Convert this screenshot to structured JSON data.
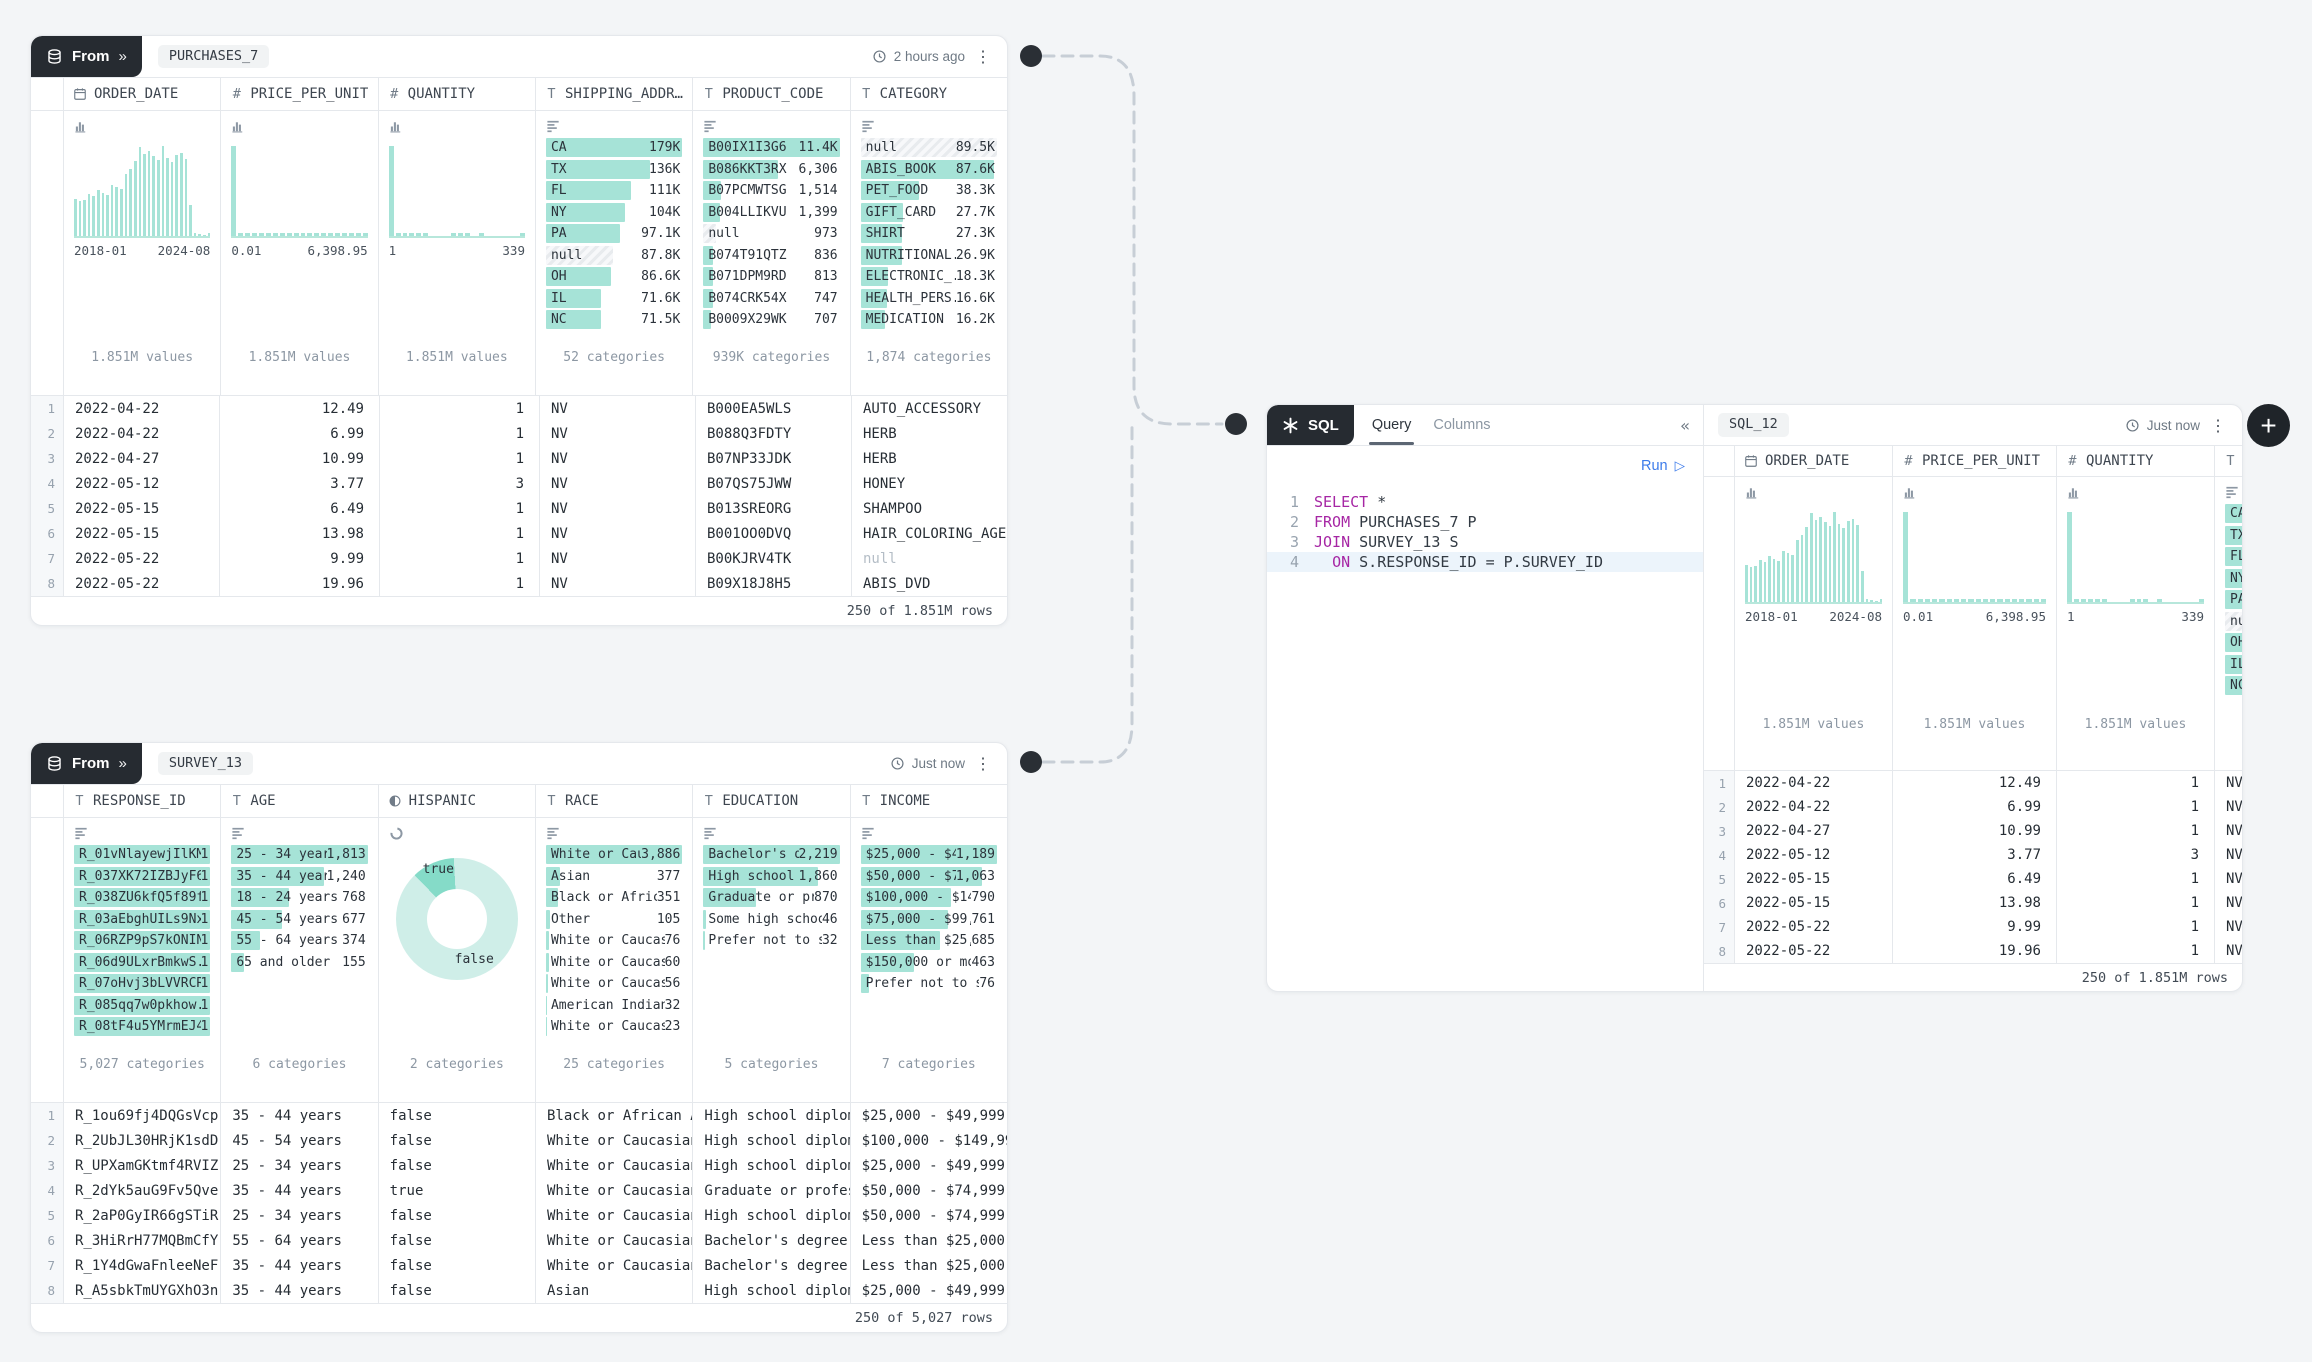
{
  "ui": {
    "from_label": "From",
    "sql_label": "SQL",
    "chevron_right": "»",
    "chevron_left": "«",
    "kebab": "⋮",
    "plus": "+",
    "run_label": "Run",
    "run_icon": "▷",
    "tab_query": "Query",
    "tab_columns": "Columns"
  },
  "purchases": {
    "tab": "PURCHASES_7",
    "timestamp": "2 hours ago",
    "columns": [
      {
        "label": "ORDER_DATE"
      },
      {
        "label": "PRICE_PER_UNIT"
      },
      {
        "label": "QUANTITY"
      },
      {
        "label": "SHIPPING_ADDR…"
      },
      {
        "label": "PRODUCT_CODE"
      },
      {
        "label": "CATEGORY"
      }
    ],
    "order_date": {
      "min": "2018-01",
      "max": "2024-08",
      "count": "1.851M values",
      "bars": [
        41,
        39,
        40,
        47,
        44,
        51,
        48,
        46,
        57,
        54,
        52,
        69,
        74,
        83,
        99,
        91,
        94,
        89,
        84,
        100,
        87,
        82,
        90,
        92,
        86,
        34,
        3,
        2,
        1,
        3
      ]
    },
    "price": {
      "min": "0.01",
      "max": "6,398.95",
      "count": "1.851M values",
      "bars": [
        100,
        3,
        3,
        3,
        3,
        3,
        3,
        3,
        3,
        3,
        3,
        3,
        3,
        3,
        3,
        3,
        3,
        3,
        3,
        3
      ]
    },
    "quantity": {
      "min": "1",
      "max": "339",
      "count": "1.851M values",
      "bars": [
        100,
        3,
        3,
        3,
        3,
        3,
        0,
        0,
        0,
        3,
        3,
        3,
        0,
        3,
        0,
        0,
        0,
        0,
        0,
        3
      ]
    },
    "shipping": {
      "count": "52 categories",
      "items": [
        {
          "label": "CA",
          "value": "179K",
          "pct": 100
        },
        {
          "label": "TX",
          "value": "136K",
          "pct": 76
        },
        {
          "label": "FL",
          "value": "111K",
          "pct": 62
        },
        {
          "label": "NY",
          "value": "104K",
          "pct": 58
        },
        {
          "label": "PA",
          "value": "97.1K",
          "pct": 54
        },
        {
          "label": "null",
          "value": "87.8K",
          "pct": 49,
          "isnull": true
        },
        {
          "label": "OH",
          "value": "86.6K",
          "pct": 48
        },
        {
          "label": "IL",
          "value": "71.6K",
          "pct": 40
        },
        {
          "label": "NC",
          "value": "71.5K",
          "pct": 40
        }
      ]
    },
    "product": {
      "count": "939K categories",
      "items": [
        {
          "label": "B00IX1I3G6",
          "value": "11.4K",
          "pct": 100
        },
        {
          "label": "B086KKT3RX",
          "value": "6,306",
          "pct": 55
        },
        {
          "label": "B07PCMWTSG",
          "value": "1,514",
          "pct": 13
        },
        {
          "label": "B004LLIKVU",
          "value": "1,399",
          "pct": 12
        },
        {
          "label": "null",
          "value": "973",
          "pct": 9,
          "isnull": true
        },
        {
          "label": "B074T91QTZ",
          "value": "836",
          "pct": 7
        },
        {
          "label": "B071DPM9RD",
          "value": "813",
          "pct": 7
        },
        {
          "label": "B074CRK54X",
          "value": "747",
          "pct": 7
        },
        {
          "label": "B0009X29WK",
          "value": "707",
          "pct": 6
        }
      ]
    },
    "category": {
      "count": "1,874 categories",
      "items": [
        {
          "label": "null",
          "value": "89.5K",
          "pct": 100,
          "isnull": true
        },
        {
          "label": "ABIS_BOOK",
          "value": "87.6K",
          "pct": 98
        },
        {
          "label": "PET_FOOD",
          "value": "38.3K",
          "pct": 43
        },
        {
          "label": "GIFT_CARD",
          "value": "27.7K",
          "pct": 31
        },
        {
          "label": "SHIRT",
          "value": "27.3K",
          "pct": 30
        },
        {
          "label": "NUTRITIONAL...",
          "value": "26.9K",
          "pct": 30
        },
        {
          "label": "ELECTRONIC_...",
          "value": "18.3K",
          "pct": 20
        },
        {
          "label": "HEALTH_PERS...",
          "value": "16.6K",
          "pct": 19
        },
        {
          "label": "MEDICATION",
          "value": "16.2K",
          "pct": 18
        }
      ]
    },
    "rows": [
      {
        "date": "2022-04-22",
        "price": "12.49",
        "qty": "1",
        "ship": "NV",
        "code": "B000EA5WLS",
        "cat": "AUTO_ACCESSORY"
      },
      {
        "date": "2022-04-22",
        "price": "6.99",
        "qty": "1",
        "ship": "NV",
        "code": "B088Q3FDTY",
        "cat": "HERB"
      },
      {
        "date": "2022-04-27",
        "price": "10.99",
        "qty": "1",
        "ship": "NV",
        "code": "B07NP33JDK",
        "cat": "HERB"
      },
      {
        "date": "2022-05-12",
        "price": "3.77",
        "qty": "3",
        "ship": "NV",
        "code": "B07QS75JWW",
        "cat": "HONEY"
      },
      {
        "date": "2022-05-15",
        "price": "6.49",
        "qty": "1",
        "ship": "NV",
        "code": "B013SREORG",
        "cat": "SHAMPOO"
      },
      {
        "date": "2022-05-15",
        "price": "13.98",
        "qty": "1",
        "ship": "NV",
        "code": "B001OO0DVQ",
        "cat": "HAIR_COLORING_AGENT"
      },
      {
        "date": "2022-05-22",
        "price": "9.99",
        "qty": "1",
        "ship": "NV",
        "code": "B00KJRV4TK",
        "cat": "null"
      },
      {
        "date": "2022-05-22",
        "price": "19.96",
        "qty": "1",
        "ship": "NV",
        "code": "B09X18J8H5",
        "cat": "ABIS_DVD"
      }
    ],
    "footer": "250 of 1.851M rows"
  },
  "survey": {
    "tab": "SURVEY_13",
    "timestamp": "Just now",
    "columns": [
      {
        "label": "RESPONSE_ID"
      },
      {
        "label": "AGE"
      },
      {
        "label": "HISPANIC"
      },
      {
        "label": "RACE"
      },
      {
        "label": "EDUCATION"
      },
      {
        "label": "INCOME"
      }
    ],
    "response_id": {
      "count": "5,027 categories",
      "items": [
        {
          "label": "R_01vNlayewjIlKMF",
          "value": "1",
          "pct": 100
        },
        {
          "label": "R_037XK72IZBJyF69",
          "value": "1",
          "pct": 100
        },
        {
          "label": "R_038ZU6kfQ5f89fH",
          "value": "1",
          "pct": 100
        },
        {
          "label": "R_03aEbghUILs9NxD",
          "value": "1",
          "pct": 100
        },
        {
          "label": "R_06RZP9pS7kONINr",
          "value": "1",
          "pct": 100
        },
        {
          "label": "R_06d9ULxrBmkwS...",
          "value": "1",
          "pct": 100
        },
        {
          "label": "R_07oHvj3bLVVRCRb",
          "value": "1",
          "pct": 100
        },
        {
          "label": "R_085qq7w0pkhow...",
          "value": "1",
          "pct": 100
        },
        {
          "label": "R_08tF4u5YMrmEJ4I",
          "value": "1",
          "pct": 100
        }
      ]
    },
    "age": {
      "count": "6 categories",
      "items": [
        {
          "label": "25 - 34 years",
          "value": "1,813",
          "pct": 100
        },
        {
          "label": "35 - 44 years",
          "value": "1,240",
          "pct": 68
        },
        {
          "label": "18 - 24 years",
          "value": "768",
          "pct": 42
        },
        {
          "label": "45 - 54 years",
          "value": "677",
          "pct": 37
        },
        {
          "label": "55 - 64 years",
          "value": "374",
          "pct": 21
        },
        {
          "label": "65 and older",
          "value": "155",
          "pct": 9
        }
      ]
    },
    "hispanic": {
      "count": "2 categories",
      "true_label": "true",
      "false_label": "false",
      "true_from": 316,
      "true_to": 357,
      "color_true": "#85dbc8",
      "color_false": "#cfeee8"
    },
    "race": {
      "count": "25 categories",
      "items": [
        {
          "label": "White or Cauc...",
          "value": "3,886",
          "pct": 100
        },
        {
          "label": "Asian",
          "value": "377",
          "pct": 10
        },
        {
          "label": "Black or African ...",
          "value": "351",
          "pct": 9
        },
        {
          "label": "Other",
          "value": "105",
          "pct": 3
        },
        {
          "label": "White or Caucasia...",
          "value": "76",
          "pct": 2
        },
        {
          "label": "White or Caucasia...",
          "value": "60",
          "pct": 2
        },
        {
          "label": "White or Caucasia...",
          "value": "56",
          "pct": 1.5
        },
        {
          "label": "American Indian/N...",
          "value": "32",
          "pct": 1
        },
        {
          "label": "White or Caucasia...",
          "value": "23",
          "pct": 1
        }
      ]
    },
    "education": {
      "count": "5 categories",
      "items": [
        {
          "label": "Bachelor's de...",
          "value": "2,219",
          "pct": 100
        },
        {
          "label": "High school di...",
          "value": "1,860",
          "pct": 84
        },
        {
          "label": "Graduate or prof...",
          "value": "870",
          "pct": 39
        },
        {
          "label": "Some high school ...",
          "value": "46",
          "pct": 2
        },
        {
          "label": "Prefer not to say",
          "value": "32",
          "pct": 1.5
        }
      ]
    },
    "income": {
      "count": "7 categories",
      "items": [
        {
          "label": "$25,000 - $49...",
          "value": "1,189",
          "pct": 100
        },
        {
          "label": "$50,000 - $74...",
          "value": "1,063",
          "pct": 89
        },
        {
          "label": "$100,000 - $149,...",
          "value": "790",
          "pct": 66
        },
        {
          "label": "$75,000 - $99,999",
          "value": "761",
          "pct": 64
        },
        {
          "label": "Less than $25,000",
          "value": "685",
          "pct": 58
        },
        {
          "label": "$150,000 or more",
          "value": "463",
          "pct": 39
        },
        {
          "label": "Prefer not to say",
          "value": "76",
          "pct": 6
        }
      ]
    },
    "rows": [
      {
        "id": "R_1ou69fj4DQGsVcp",
        "age": "35 - 44 years",
        "hisp": "false",
        "race": "Black or African Ameri...",
        "edu": "High school diploma or...",
        "income": "$25,000 - $49,999"
      },
      {
        "id": "R_2UbJL30HRjK1sdD",
        "age": "45 - 54 years",
        "hisp": "false",
        "race": "White or Caucasian",
        "edu": "High school diploma or...",
        "income": "$100,000 - $149,999"
      },
      {
        "id": "R_UPXamGKtmf4RVIZ",
        "age": "25 - 34 years",
        "hisp": "false",
        "race": "White or Caucasian",
        "edu": "High school diploma or...",
        "income": "$25,000 - $49,999"
      },
      {
        "id": "R_2dYk5auG9Fv5Qve",
        "age": "35 - 44 years",
        "hisp": "true",
        "race": "White or Caucasian",
        "edu": "Graduate or profession...",
        "income": "$50,000 - $74,999"
      },
      {
        "id": "R_2aP0GyIR66gSTiR",
        "age": "25 - 34 years",
        "hisp": "false",
        "race": "White or Caucasian",
        "edu": "High school diploma or...",
        "income": "$50,000 - $74,999"
      },
      {
        "id": "R_3HiRrH77MQBmCfY",
        "age": "55 - 64 years",
        "hisp": "false",
        "race": "White or Caucasian",
        "edu": "Bachelor's degree",
        "income": "Less than $25,000"
      },
      {
        "id": "R_1Y4dGwaFnleeNeF",
        "age": "35 - 44 years",
        "hisp": "false",
        "race": "White or Caucasian",
        "edu": "Bachelor's degree",
        "income": "Less than $25,000"
      },
      {
        "id": "R_A5sbkTmUYGXhO3n",
        "age": "35 - 44 years",
        "hisp": "false",
        "race": "Asian",
        "edu": "High school diploma or...",
        "income": "$25,000 - $49,999"
      }
    ],
    "footer": "250 of 5,027 rows"
  },
  "sql": {
    "tab": "SQL_12",
    "timestamp": "Just now",
    "lines": [
      {
        "num": "1",
        "indent": "",
        "kw": "SELECT",
        "rest": " *"
      },
      {
        "num": "2",
        "indent": "",
        "kw": "FROM",
        "rest": " PURCHASES_7 P"
      },
      {
        "num": "3",
        "indent": "",
        "kw": "JOIN",
        "rest": " SURVEY_13 S"
      },
      {
        "num": "4",
        "indent": "  ",
        "kw": "ON",
        "rest": " S.RESPONSE_ID = P.SURVEY_ID",
        "active": true
      }
    ],
    "columns": [
      {
        "label": "ORDER_DATE"
      },
      {
        "label": "PRICE_PER_UNIT"
      },
      {
        "label": "QUANTITY"
      },
      {
        "label": ""
      }
    ],
    "footer": "250 of 1.851M rows"
  }
}
